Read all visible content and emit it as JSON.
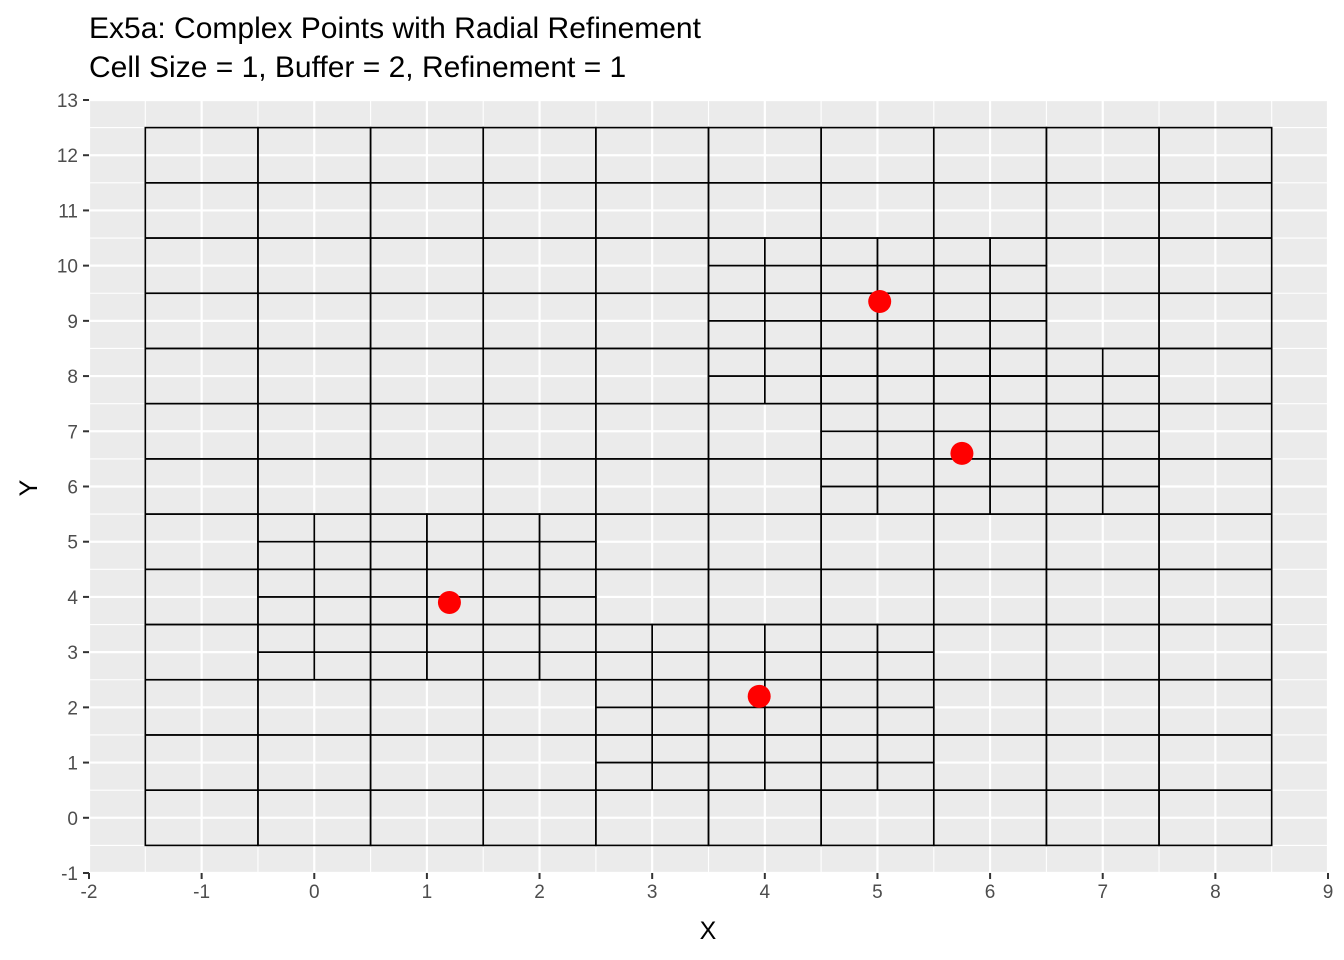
{
  "chart_data": {
    "type": "scatter",
    "title": "Ex5a: Complex Points with Radial Refinement",
    "subtitle": "Cell Size = 1, Buffer = 2, Refinement = 1",
    "xlabel": "X",
    "ylabel": "Y",
    "xlim": [
      -2,
      9
    ],
    "ylim": [
      -1,
      13
    ],
    "xticks": [
      -2,
      -1,
      0,
      1,
      2,
      3,
      4,
      5,
      6,
      7,
      8,
      9
    ],
    "yticks": [
      -1,
      0,
      1,
      2,
      3,
      4,
      5,
      6,
      7,
      8,
      9,
      10,
      11,
      12,
      13
    ],
    "grid": true,
    "points": [
      {
        "x": 1.2,
        "y": 3.9
      },
      {
        "x": 3.95,
        "y": 2.2
      },
      {
        "x": 5.02,
        "y": 9.35
      },
      {
        "x": 5.75,
        "y": 6.6
      }
    ],
    "point_color": "#ff0000",
    "panel_background": "#ebebeb",
    "grid_color": "#ffffff",
    "cell_edge_color": "#000000",
    "coarse_grid": {
      "x_range": [
        -1.5,
        8.5
      ],
      "y_range": [
        -0.5,
        12.5
      ],
      "cell_size": 1
    },
    "refined_regions": [
      {
        "x_range": [
          -0.5,
          2.5
        ],
        "y_range": [
          2.5,
          5.5
        ],
        "cell_size": 0.5
      },
      {
        "x_range": [
          2.5,
          5.5
        ],
        "y_range": [
          0.5,
          3.5
        ],
        "cell_size": 0.5
      },
      {
        "x_range": [
          3.5,
          6.5
        ],
        "y_range": [
          7.5,
          10.5
        ],
        "cell_size": 0.5
      },
      {
        "x_range": [
          4.5,
          7.5
        ],
        "y_range": [
          5.5,
          8.5
        ],
        "cell_size": 0.5
      }
    ]
  }
}
